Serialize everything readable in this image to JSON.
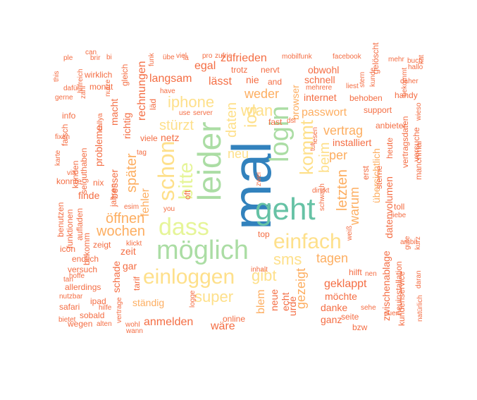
{
  "wordcloud": {
    "palette": [
      "#3282bd",
      "#66c2a5",
      "#abdda4",
      "#e6f598",
      "#fee08b",
      "#fdae61",
      "#f46d43",
      "#d53e4f"
    ],
    "words": [
      {
        "text": "mal",
        "c": 1
      },
      {
        "text": "geht",
        "c": 2
      },
      {
        "text": "leider",
        "c": 3
      },
      {
        "text": "login",
        "c": 3
      },
      {
        "text": "möglich",
        "c": 3
      },
      {
        "text": "dass",
        "c": 4
      },
      {
        "text": "einfach",
        "c": 5
      },
      {
        "text": "einloggen",
        "c": 5
      },
      {
        "text": "schon",
        "c": 5
      },
      {
        "text": "bitte",
        "c": 4
      },
      {
        "text": "kommt",
        "c": 5
      },
      {
        "text": "ios",
        "c": 5
      },
      {
        "text": "sms",
        "c": 5
      },
      {
        "text": "super",
        "c": 5
      },
      {
        "text": "gibt",
        "c": 5
      },
      {
        "text": "iphone",
        "c": 5
      },
      {
        "text": "wlan",
        "c": 5
      },
      {
        "text": "stürzt",
        "c": 5
      },
      {
        "text": "daten",
        "c": 5
      },
      {
        "text": "beim",
        "c": 5
      },
      {
        "text": "öffnen",
        "c": 6
      },
      {
        "text": "wochen",
        "c": 6
      },
      {
        "text": "neu",
        "c": 5
      },
      {
        "text": "später",
        "c": 6
      },
      {
        "text": "gezeigt",
        "c": 6
      },
      {
        "text": "letzten",
        "c": 6
      },
      {
        "text": "warum",
        "c": 6
      },
      {
        "text": "tagen",
        "c": 6
      },
      {
        "text": "vertrag",
        "c": 6
      },
      {
        "text": "weder",
        "c": 6
      },
      {
        "text": "passwort",
        "c": 6
      },
      {
        "text": "per",
        "c": 6
      },
      {
        "text": "fehler",
        "c": 6
      },
      {
        "text": "blem",
        "c": 6
      },
      {
        "text": "zufrieden",
        "c": 7
      },
      {
        "text": "lässt",
        "c": 7
      },
      {
        "text": "langsam",
        "c": 7
      },
      {
        "text": "egal",
        "c": 7
      },
      {
        "text": "browser",
        "c": 6
      },
      {
        "text": "schnell",
        "c": 7
      },
      {
        "text": "internet",
        "c": 7
      },
      {
        "text": "installiert",
        "c": 7
      },
      {
        "text": "übersichtlich",
        "c": 6
      },
      {
        "text": "anmelden",
        "c": 7
      },
      {
        "text": "wäre",
        "c": 7
      },
      {
        "text": "ständig",
        "c": 6
      },
      {
        "text": "geklappt",
        "c": 7
      },
      {
        "text": "möchte",
        "c": 7
      },
      {
        "text": "danke",
        "c": 7
      },
      {
        "text": "ganz",
        "c": 7
      },
      {
        "text": "rechnungen",
        "c": 7
      },
      {
        "text": "besser",
        "c": 7
      },
      {
        "text": "richtig",
        "c": 7
      },
      {
        "text": "macht",
        "c": 7
      },
      {
        "text": "probleme",
        "c": 7
      },
      {
        "text": "zeit",
        "c": 7
      },
      {
        "text": "gar",
        "c": 7
      },
      {
        "text": "schade",
        "c": 7
      },
      {
        "text": "finde",
        "c": 7
      },
      {
        "text": "netz",
        "c": 7
      },
      {
        "text": "nie",
        "c": 7
      },
      {
        "text": "obwohl",
        "c": 7
      },
      {
        "text": "neue",
        "c": 7
      },
      {
        "text": "echt",
        "c": 7
      },
      {
        "text": "urde",
        "c": 7
      },
      {
        "text": "datenvolumen",
        "c": 7
      },
      {
        "text": "zwischenablage",
        "c": 7
      },
      {
        "text": "neuinstallation",
        "c": 7
      },
      {
        "text": "kundenservice",
        "c": 7
      },
      {
        "text": "gelöscht",
        "c": 7
      },
      {
        "text": "jahren",
        "c": 7
      },
      {
        "text": "nix",
        "c": 7
      },
      {
        "text": "zeigt",
        "c": 7
      },
      {
        "text": "endlich",
        "c": 7
      },
      {
        "text": "versuch",
        "c": 7
      },
      {
        "text": "allerdings",
        "c": 7
      },
      {
        "text": "safari",
        "c": 7
      },
      {
        "text": "sobald",
        "c": 7
      },
      {
        "text": "wegen",
        "c": 7
      },
      {
        "text": "ipad",
        "c": 7
      },
      {
        "text": "nutzbar",
        "c": 7
      },
      {
        "text": "bietet",
        "c": 7
      },
      {
        "text": "icon",
        "c": 7
      },
      {
        "text": "konnte",
        "c": 7
      },
      {
        "text": "benutzen",
        "c": 7
      },
      {
        "text": "funktionen",
        "c": 7
      },
      {
        "text": "aufladen",
        "c": 7
      },
      {
        "text": "bekomm",
        "c": 7
      },
      {
        "text": "kunden",
        "c": 7
      },
      {
        "text": "selguthaben",
        "c": 7
      },
      {
        "text": "wirklich",
        "c": 7
      },
      {
        "text": "monat",
        "c": 7
      },
      {
        "text": "dafür",
        "c": 7
      },
      {
        "text": "gerne",
        "c": 7
      },
      {
        "text": "info",
        "c": 7
      },
      {
        "text": "falsch",
        "c": 7
      },
      {
        "text": "karte",
        "c": 7
      },
      {
        "text": "gleich",
        "c": 7
      },
      {
        "text": "viele",
        "c": 7
      },
      {
        "text": "tag",
        "c": 7
      },
      {
        "text": "läd",
        "c": 7
      },
      {
        "text": "oft",
        "c": 7
      },
      {
        "text": "tarif",
        "c": 7
      },
      {
        "text": "klickt",
        "c": 7
      },
      {
        "text": "you",
        "c": 7
      },
      {
        "text": "esim",
        "c": 7
      },
      {
        "text": "top",
        "c": 7
      },
      {
        "text": "fast",
        "c": 7
      },
      {
        "text": "trotz",
        "c": 7
      },
      {
        "text": "nervt",
        "c": 7
      },
      {
        "text": "and",
        "c": 7
      },
      {
        "text": "mehrere",
        "c": 7
      },
      {
        "text": "behoben",
        "c": 7
      },
      {
        "text": "handy",
        "c": 7
      },
      {
        "text": "support",
        "c": 7
      },
      {
        "text": "anbieter",
        "c": 7
      },
      {
        "text": "heute",
        "c": 7
      },
      {
        "text": "vertragsdaten",
        "c": 7
      },
      {
        "text": "versuche",
        "c": 7
      },
      {
        "text": "manchmal",
        "c": 7
      },
      {
        "text": "toll",
        "c": 7
      },
      {
        "text": "erst",
        "c": 7
      },
      {
        "text": "sterne",
        "c": 7
      },
      {
        "text": "seite",
        "c": 7
      },
      {
        "text": "bzw",
        "c": 7
      },
      {
        "text": "hilft",
        "c": 7
      },
      {
        "text": "sehe",
        "c": 7
      },
      {
        "text": "online",
        "c": 7
      },
      {
        "text": "inhalt",
        "c": 7
      },
      {
        "text": "logge",
        "c": 7
      },
      {
        "text": "hoffe",
        "c": 7
      },
      {
        "text": "hilfe",
        "c": 7
      },
      {
        "text": "vertrage",
        "c": 7
      },
      {
        "text": "wohl",
        "c": 7
      },
      {
        "text": "wann",
        "c": 7
      },
      {
        "text": "alten",
        "c": 7
      },
      {
        "text": "gute",
        "c": 7
      },
      {
        "text": "kurz",
        "c": 7
      },
      {
        "text": "daran",
        "c": 7
      },
      {
        "text": "natürlich",
        "c": 7
      },
      {
        "text": "mobilfunk",
        "c": 7
      },
      {
        "text": "facebook",
        "c": 7
      },
      {
        "text": "daher",
        "c": 7
      },
      {
        "text": "bekommt",
        "c": 7
      },
      {
        "text": "hallo",
        "c": 7
      },
      {
        "text": "kat",
        "c": 7
      },
      {
        "text": "wieso",
        "c": 7
      },
      {
        "text": "use",
        "c": 7
      },
      {
        "text": "server",
        "c": 7
      },
      {
        "text": "have",
        "c": 7
      },
      {
        "text": "ple",
        "c": 7
      },
      {
        "text": "this",
        "c": 7
      },
      {
        "text": "brir",
        "c": 7
      },
      {
        "text": "hilfreich",
        "c": 7
      },
      {
        "text": "can",
        "c": 7
      },
      {
        "text": "nutze",
        "c": 7
      },
      {
        "text": "pro",
        "c": 7
      },
      {
        "text": "lesen",
        "c": 7
      },
      {
        "text": "tut",
        "c": 7
      },
      {
        "text": "direkt",
        "c": 7
      },
      {
        "text": "zwei",
        "c": 7
      },
      {
        "text": "schwach",
        "c": 7
      },
      {
        "text": "weiß",
        "c": 7
      },
      {
        "text": "liebe",
        "c": 7
      },
      {
        "text": "liest",
        "c": 7
      },
      {
        "text": "stern",
        "c": 7
      },
      {
        "text": "kunde",
        "c": 7
      },
      {
        "text": "dsl",
        "c": 7
      },
      {
        "text": "nen",
        "c": 7
      },
      {
        "text": "zahl",
        "c": 7
      },
      {
        "text": "callya",
        "c": 7
      },
      {
        "text": "funk",
        "c": 7
      },
      {
        "text": "übe",
        "c": 7
      },
      {
        "text": "fixen",
        "c": 7
      },
      {
        "text": "via",
        "c": 7
      },
      {
        "text": "buch",
        "c": 7
      },
      {
        "text": "mehr",
        "c": 7
      },
      {
        "text": "euen",
        "c": 7
      },
      {
        "text": "ambit",
        "c": 7
      },
      {
        "text": "tan",
        "c": 7
      },
      {
        "text": "bi",
        "c": 7
      },
      {
        "text": "viel",
        "c": 7
      },
      {
        "text": "zufrie",
        "c": 7
      },
      {
        "text": "lä",
        "c": 7
      }
    ]
  }
}
